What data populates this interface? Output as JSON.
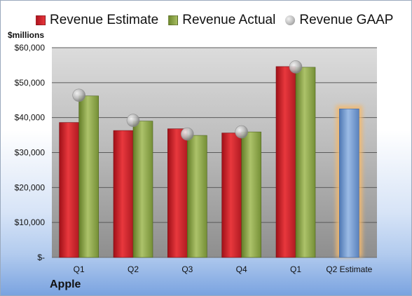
{
  "header": {
    "unit": "$millions",
    "company": "Apple"
  },
  "legend": [
    {
      "key": "estimate",
      "label": "Revenue Estimate"
    },
    {
      "key": "actual",
      "label": "Revenue Actual"
    },
    {
      "key": "gaap",
      "label": "Revenue GAAP"
    }
  ],
  "colors": {
    "estimate": "#cc2229",
    "actual": "#8da44a",
    "gaap": "#a9a9a9",
    "forecast": "#6f97cf",
    "forecast_glow": "#f3b96e"
  },
  "chart_data": {
    "type": "bar",
    "categories": [
      "Q1",
      "Q2",
      "Q3",
      "Q4",
      "Q1",
      "Q2 Estimate"
    ],
    "series": [
      {
        "name": "Revenue Estimate",
        "values": [
          38600,
          36300,
          36800,
          35600,
          54600,
          42500
        ]
      },
      {
        "name": "Revenue Actual",
        "values": [
          46200,
          39000,
          34900,
          35900,
          54400,
          null
        ]
      },
      {
        "name": "Revenue GAAP",
        "values": [
          46400,
          39200,
          35300,
          35900,
          54500,
          null
        ]
      }
    ],
    "ylim": [
      0,
      60000
    ],
    "yticks": [
      0,
      10000,
      20000,
      30000,
      40000,
      50000,
      60000
    ],
    "ytick_labels": [
      "$-",
      "$10,000",
      "$20,000",
      "$30,000",
      "$40,000",
      "$50,000",
      "$60,000"
    ],
    "ylabel": "$millions",
    "grid": true,
    "legend_position": "top"
  }
}
